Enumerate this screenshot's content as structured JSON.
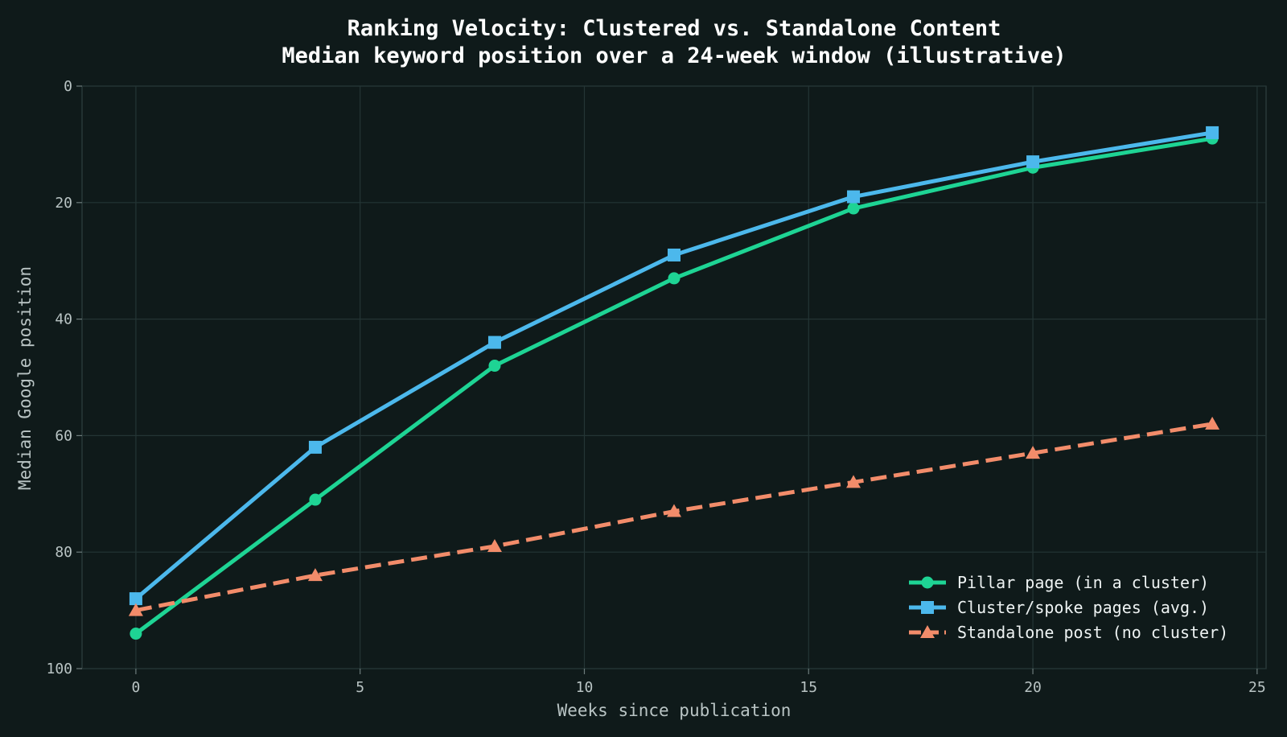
{
  "chart_data": {
    "type": "line",
    "title": "Ranking Velocity: Clustered vs. Standalone Content",
    "subtitle": "Median keyword position over a 24-week window (illustrative)",
    "xlabel": "Weeks since publication",
    "ylabel": "Median Google position",
    "xlim": [
      -1.2,
      25.2
    ],
    "ylim": [
      100,
      0
    ],
    "y_inverted": true,
    "xticks": [
      0,
      5,
      10,
      15,
      20,
      25
    ],
    "yticks": [
      0,
      20,
      40,
      60,
      80,
      100
    ],
    "grid": true,
    "legend_position": "bottom-right",
    "x": [
      0,
      4,
      8,
      12,
      16,
      20,
      24
    ],
    "series": [
      {
        "name": "Pillar page (in a cluster)",
        "values": [
          94,
          71,
          48,
          33,
          21,
          14,
          9
        ],
        "color": "#1ed494",
        "marker": "circle",
        "dash": "solid"
      },
      {
        "name": "Cluster/spoke pages (avg.)",
        "values": [
          88,
          62,
          44,
          29,
          19,
          13,
          8
        ],
        "color": "#4cb8ec",
        "marker": "square",
        "dash": "solid"
      },
      {
        "name": "Standalone post (no cluster)",
        "values": [
          90,
          84,
          79,
          73,
          68,
          63,
          58
        ],
        "color": "#f28c6a",
        "marker": "triangle",
        "dash": "dashed"
      }
    ]
  }
}
